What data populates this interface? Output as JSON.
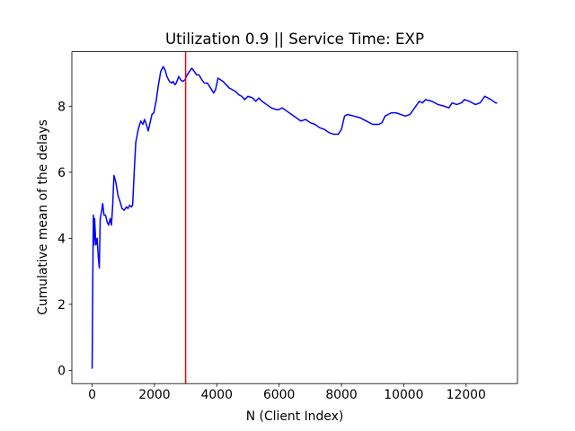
{
  "chart_data": {
    "type": "line",
    "title": "Utilization 0.9 || Service Time: EXP",
    "xlabel": "N (Client Index)",
    "ylabel": "Cumulative mean of the delays",
    "x": [
      0,
      20,
      40,
      60,
      80,
      120,
      160,
      200,
      230,
      260,
      300,
      340,
      380,
      430,
      480,
      530,
      580,
      620,
      660,
      700,
      760,
      830,
      900,
      960,
      1030,
      1100,
      1150,
      1200,
      1260,
      1300,
      1350,
      1400,
      1480,
      1560,
      1630,
      1680,
      1740,
      1800,
      1860,
      1920,
      1980,
      2060,
      2120,
      2200,
      2280,
      2340,
      2400,
      2480,
      2560,
      2600,
      2660,
      2700,
      2780,
      2840,
      2900,
      2980,
      3050,
      3120,
      3200,
      3280,
      3350,
      3430,
      3520,
      3600,
      3700,
      3800,
      3900,
      3960,
      4040,
      4120,
      4200,
      4300,
      4400,
      4500,
      4600,
      4700,
      4800,
      4900,
      5000,
      5150,
      5250,
      5350,
      5450,
      5600,
      5750,
      5900,
      6000,
      6100,
      6250,
      6400,
      6550,
      6700,
      6850,
      7000,
      7150,
      7300,
      7450,
      7600,
      7750,
      7900,
      8000,
      8100,
      8200,
      8400,
      8600,
      8800,
      9000,
      9200,
      9300,
      9400,
      9600,
      9750,
      9900,
      10050,
      10200,
      10350,
      10500,
      10600,
      10700,
      10900,
      11100,
      11300,
      11450,
      11550,
      11700,
      11850,
      11950,
      12100,
      12300,
      12450,
      12600,
      12800,
      12950,
      13000
    ],
    "series": [
      {
        "color": "#0000ff",
        "values": [
          0.05,
          2.7,
          4.7,
          3.8,
          4.6,
          3.8,
          4.0,
          3.4,
          3.1,
          4.6,
          4.8,
          5.05,
          4.7,
          4.7,
          4.5,
          4.4,
          4.6,
          4.4,
          5.0,
          5.9,
          5.7,
          5.3,
          5.1,
          4.9,
          4.85,
          4.95,
          4.9,
          5.0,
          4.95,
          5.0,
          6.0,
          6.9,
          7.3,
          7.55,
          7.45,
          7.6,
          7.45,
          7.25,
          7.5,
          7.75,
          7.8,
          8.2,
          8.6,
          9.05,
          9.2,
          9.1,
          8.9,
          8.75,
          8.7,
          8.75,
          8.65,
          8.7,
          8.9,
          8.8,
          8.75,
          8.8,
          8.95,
          9.05,
          9.15,
          9.05,
          8.95,
          8.95,
          8.8,
          8.7,
          8.7,
          8.55,
          8.4,
          8.5,
          8.85,
          8.8,
          8.75,
          8.65,
          8.55,
          8.5,
          8.45,
          8.35,
          8.3,
          8.2,
          8.3,
          8.25,
          8.15,
          8.25,
          8.15,
          8.05,
          7.95,
          7.9,
          7.9,
          7.95,
          7.85,
          7.75,
          7.65,
          7.55,
          7.6,
          7.5,
          7.45,
          7.35,
          7.3,
          7.2,
          7.15,
          7.15,
          7.3,
          7.7,
          7.75,
          7.7,
          7.65,
          7.55,
          7.45,
          7.45,
          7.5,
          7.7,
          7.8,
          7.8,
          7.75,
          7.7,
          7.75,
          7.95,
          8.15,
          8.1,
          8.2,
          8.15,
          8.05,
          8.0,
          7.95,
          8.1,
          8.05,
          8.1,
          8.2,
          8.15,
          8.05,
          8.1,
          8.3,
          8.2,
          8.1,
          8.1
        ]
      }
    ],
    "vline": {
      "x": 3000,
      "color": "#ff0000"
    },
    "xlim": [
      -650,
      13650
    ],
    "ylim": [
      -0.4,
      9.65
    ],
    "xticks": [
      0,
      2000,
      4000,
      6000,
      8000,
      10000,
      12000
    ],
    "yticks": [
      0,
      2,
      4,
      6,
      8
    ]
  }
}
